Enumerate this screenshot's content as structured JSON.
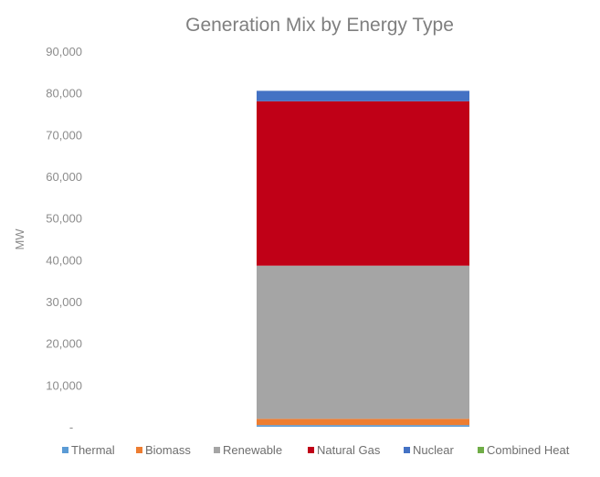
{
  "chart_data": {
    "type": "bar",
    "stacked": true,
    "title": "Generation Mix by Energy Type",
    "xlabel": "",
    "ylabel": "MW",
    "ylim": [
      0,
      90000
    ],
    "yticks": [
      0,
      10000,
      20000,
      30000,
      40000,
      50000,
      60000,
      70000,
      80000,
      90000
    ],
    "ytick_labels": [
      "-",
      "10,000",
      "20,000",
      "30,000",
      "40,000",
      "50,000",
      "60,000",
      "70,000",
      "80,000",
      "90,000"
    ],
    "grid": false,
    "legend_position": "bottom",
    "categories": [
      ""
    ],
    "series": [
      {
        "name": "Thermal",
        "values": [
          400
        ],
        "color": "#5b9bd5"
      },
      {
        "name": "Biomass",
        "values": [
          1500
        ],
        "color": "#ed7d31"
      },
      {
        "name": "Renewable",
        "values": [
          36700
        ],
        "color": "#a5a5a5"
      },
      {
        "name": "Natural Gas",
        "values": [
          39400
        ],
        "color": "#c00017"
      },
      {
        "name": "Nuclear",
        "values": [
          2500
        ],
        "color": "#4472c4"
      },
      {
        "name": "Combined Heat",
        "values": [
          0
        ],
        "color": "#70ad47"
      }
    ]
  }
}
